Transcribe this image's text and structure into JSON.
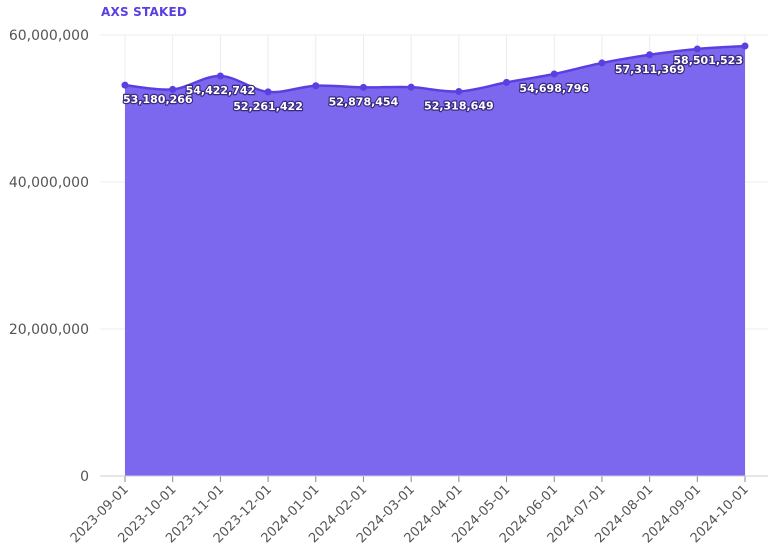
{
  "chart_data": {
    "type": "area",
    "series_label": "AXS STAKED",
    "x": [
      "2023-09-01",
      "2023-10-01",
      "2023-11-01",
      "2023-12-01",
      "2024-01-01",
      "2024-02-01",
      "2024-03-01",
      "2024-04-01",
      "2024-05-01",
      "2024-06-01",
      "2024-07-01",
      "2024-08-01",
      "2024-09-01",
      "2024-10-01"
    ],
    "series": [
      {
        "name": "AXS STAKED",
        "values": [
          53180266,
          52600000,
          54422742,
          52261422,
          53100000,
          52878454,
          52900000,
          52318649,
          53550000,
          54698796,
          56200000,
          57311369,
          58100000,
          58501523
        ]
      }
    ],
    "data_labels": [
      {
        "index": 0,
        "text": "53,180,266"
      },
      {
        "index": 2,
        "text": "54,422,742"
      },
      {
        "index": 3,
        "text": "52,261,422"
      },
      {
        "index": 5,
        "text": "52,878,454"
      },
      {
        "index": 7,
        "text": "52,318,649"
      },
      {
        "index": 9,
        "text": "54,698,796"
      },
      {
        "index": 11,
        "text": "57,311,369"
      },
      {
        "index": 13,
        "text": "58,501,523"
      }
    ],
    "y_ticks": [
      0,
      20000000,
      40000000,
      60000000
    ],
    "y_tick_labels": [
      "0",
      "20,000,000",
      "40,000,000",
      "60,000,000"
    ],
    "ylim": [
      0,
      60000000
    ],
    "grid": true,
    "legend": "none",
    "colors": {
      "area_fill": "#7b68ee",
      "line": "#5b3fe0",
      "point": "#5b3fe0",
      "label_text": "#ffffff",
      "label_stroke": "#3a2a80",
      "grid": "#ececec",
      "tick_text": "#555555",
      "title": "#5b3fe0"
    }
  }
}
